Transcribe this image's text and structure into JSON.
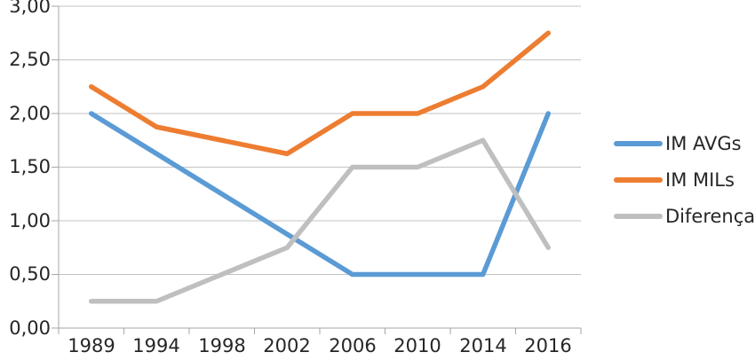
{
  "chart_data": {
    "type": "line",
    "title": "",
    "xlabel": "",
    "ylabel": "",
    "categories": [
      "1989",
      "1994",
      "1998",
      "2002",
      "2006",
      "2010",
      "2014",
      "2016"
    ],
    "series": [
      {
        "name": "IM AVGs",
        "color": "#5B9BD5",
        "values": [
          2.0,
          1.625,
          1.25,
          0.875,
          0.5,
          0.5,
          0.5,
          2.0
        ]
      },
      {
        "name": "IM MILs",
        "color": "#ED7D31",
        "values": [
          2.25,
          1.875,
          1.75,
          1.625,
          2.0,
          2.0,
          2.25,
          2.75
        ]
      },
      {
        "name": "Diferença",
        "color": "#BFBFBF",
        "values": [
          0.25,
          0.25,
          0.5,
          0.75,
          1.5,
          1.5,
          1.75,
          0.75
        ]
      }
    ],
    "ylim": [
      0,
      3
    ],
    "y_tick_step": 0.5,
    "y_tick_labels": [
      "0,00",
      "0,50",
      "1,00",
      "1,50",
      "2,00",
      "2,50",
      "3,00"
    ],
    "grid": true,
    "legend_position": "right"
  },
  "colors": {
    "background": "#FFFFFF",
    "grid_line": "#C3C3C3",
    "axis_line": "#A6A6A6",
    "text": "#262626"
  }
}
